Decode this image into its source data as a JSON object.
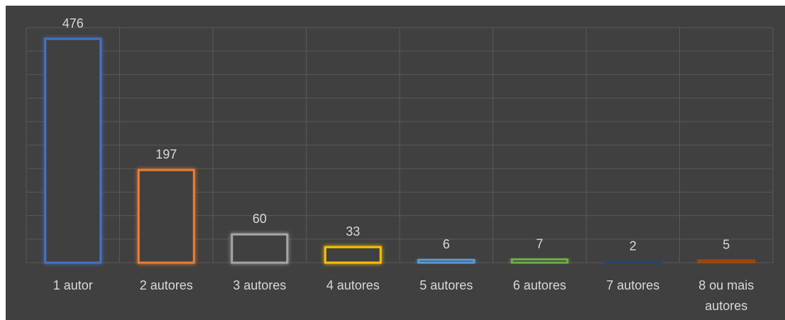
{
  "chart_data": {
    "type": "bar",
    "categories": [
      "1 autor",
      "2 autores",
      "3 autores",
      "4 autores",
      "5 autores",
      "6 autores",
      "7 autores",
      "8 ou mais autores"
    ],
    "values": [
      476,
      197,
      60,
      33,
      6,
      7,
      2,
      5
    ],
    "colors": [
      "#4472c4",
      "#ed7d31",
      "#a5a5a5",
      "#ffc000",
      "#5b9bd5",
      "#70ad47",
      "#264478",
      "#9e480e"
    ],
    "ylim": [
      0,
      500
    ],
    "yticks": [
      0,
      50,
      100,
      150,
      200,
      250,
      300,
      350,
      400,
      450,
      500
    ],
    "grid": true
  }
}
